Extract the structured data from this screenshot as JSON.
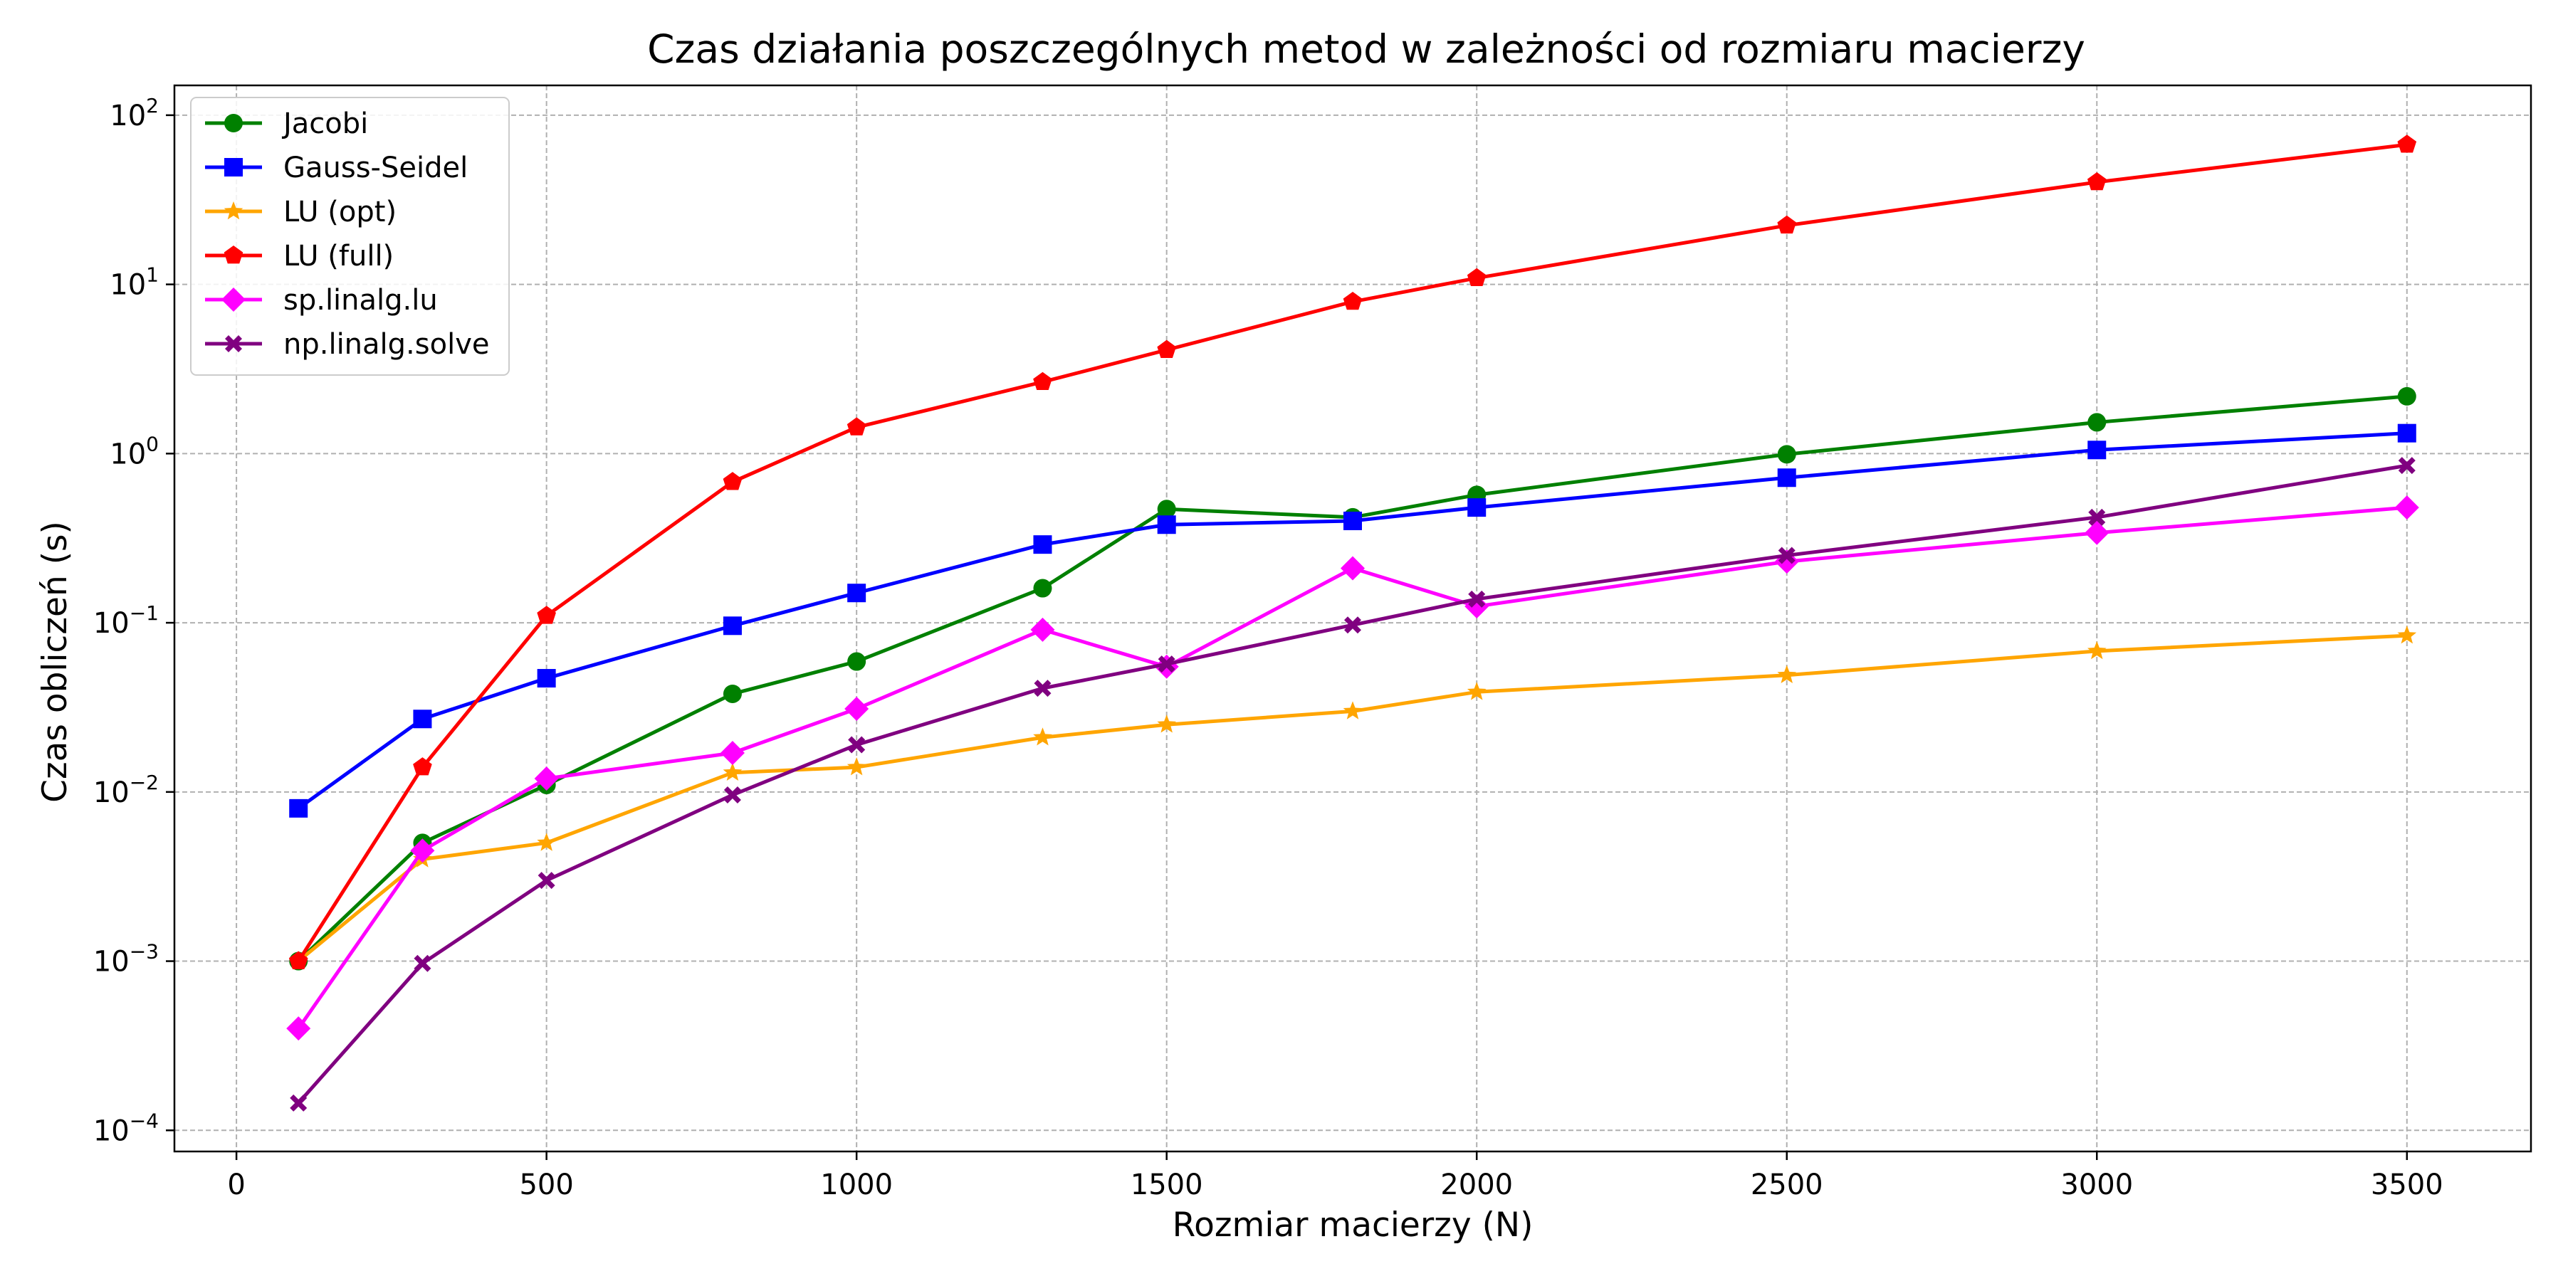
{
  "chart_data": {
    "type": "line",
    "title": "Czas działania poszczególnych metod w zależności od rozmiaru macierzy",
    "xlabel": "Rozmiar macierzy (N)",
    "ylabel": "Czas obliczeń (s)",
    "x_scale": "linear",
    "y_scale": "log",
    "xlim": [
      -100,
      3700
    ],
    "ylim": [
      7.5e-05,
      150
    ],
    "x_ticks": [
      0,
      500,
      1000,
      1500,
      2000,
      2500,
      3000,
      3500
    ],
    "x_tick_labels": [
      "0",
      "500",
      "1000",
      "1500",
      "2000",
      "2500",
      "3000",
      "3500"
    ],
    "y_ticks": [
      0.0001,
      0.001,
      0.01,
      0.1,
      1,
      10,
      100
    ],
    "y_tick_labels": [
      {
        "base": "10",
        "exp": "−4"
      },
      {
        "base": "10",
        "exp": "−3"
      },
      {
        "base": "10",
        "exp": "−2"
      },
      {
        "base": "10",
        "exp": "−1"
      },
      {
        "base": "10",
        "exp": "0"
      },
      {
        "base": "10",
        "exp": "1"
      },
      {
        "base": "10",
        "exp": "2"
      }
    ],
    "grid": true,
    "legend_position": "top-left",
    "x": [
      100,
      300,
      500,
      800,
      1000,
      1300,
      1500,
      1800,
      2000,
      2500,
      3000,
      3500
    ],
    "series": [
      {
        "name": "Jacobi",
        "color": "#008000",
        "marker": "circle",
        "values": [
          0.001,
          0.005,
          0.011,
          0.038,
          0.059,
          0.16,
          0.47,
          0.42,
          0.57,
          0.99,
          1.53,
          2.18
        ]
      },
      {
        "name": "Gauss-Seidel",
        "color": "#0000ff",
        "marker": "square",
        "values": [
          0.008,
          0.027,
          0.047,
          0.096,
          0.15,
          0.29,
          0.38,
          0.4,
          0.48,
          0.72,
          1.05,
          1.32
        ]
      },
      {
        "name": "LU (opt)",
        "color": "#ffa500",
        "marker": "star",
        "values": [
          0.001,
          0.004,
          0.005,
          0.013,
          0.014,
          0.021,
          0.025,
          0.03,
          0.039,
          0.049,
          0.068,
          0.084
        ]
      },
      {
        "name": "LU (full)",
        "color": "#ff0000",
        "marker": "pentagon",
        "values": [
          0.001,
          0.014,
          0.11,
          0.68,
          1.43,
          2.65,
          4.1,
          7.9,
          10.9,
          22.3,
          40.2,
          67.0
        ]
      },
      {
        "name": "sp.linalg.lu",
        "color": "#ff00ff",
        "marker": "diamond",
        "values": [
          0.0004,
          0.0045,
          0.012,
          0.017,
          0.031,
          0.091,
          0.055,
          0.21,
          0.125,
          0.23,
          0.34,
          0.48
        ]
      },
      {
        "name": "np.linalg.solve",
        "color": "#800080",
        "marker": "x",
        "values": [
          0.000145,
          0.00097,
          0.003,
          0.0096,
          0.019,
          0.041,
          0.057,
          0.097,
          0.138,
          0.25,
          0.42,
          0.85
        ]
      }
    ]
  }
}
